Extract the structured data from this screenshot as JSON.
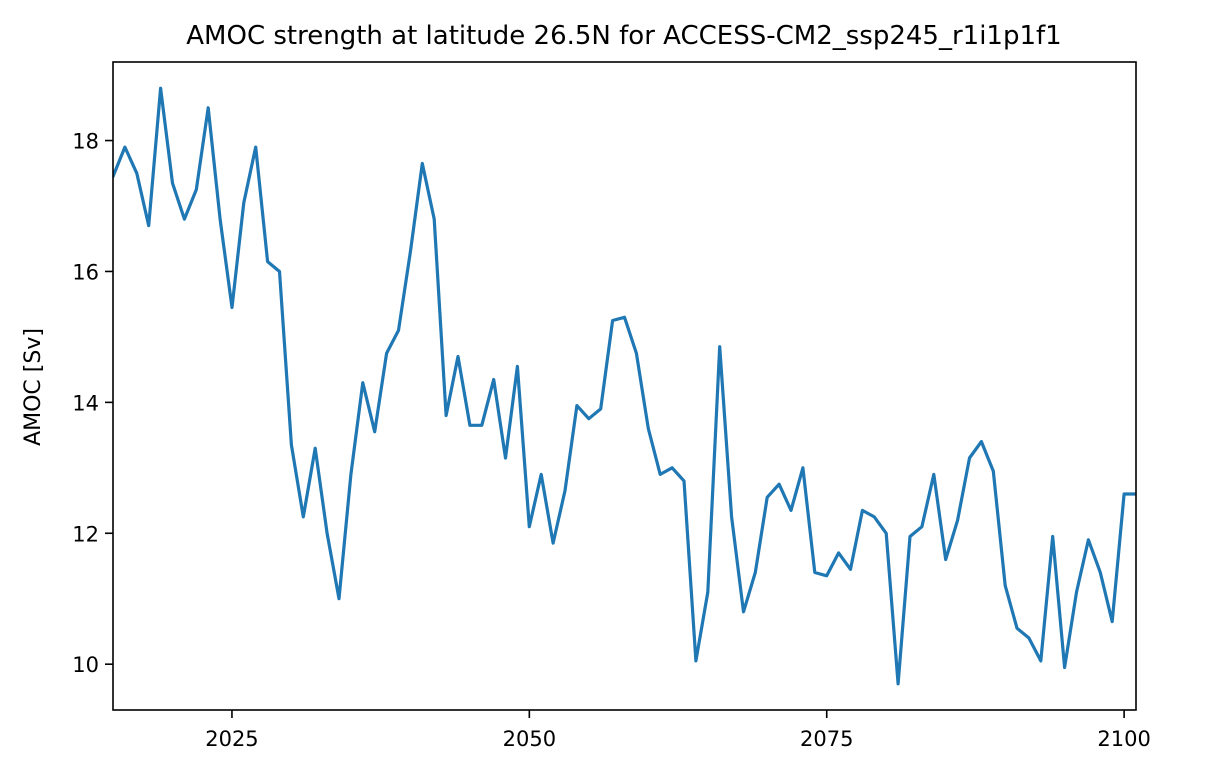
{
  "chart_data": {
    "type": "line",
    "title": "AMOC strength at latitude 26.5N for ACCESS-CM2_ssp245_r1i1p1f1",
    "xlabel": "",
    "ylabel": "AMOC [Sv]",
    "xlim": [
      2015,
      2101
    ],
    "ylim": [
      9.3,
      19.2
    ],
    "xticks": [
      2025,
      2050,
      2075,
      2100
    ],
    "yticks": [
      10,
      12,
      14,
      16,
      18
    ],
    "grid": false,
    "color": "#1f77b4",
    "series": [
      {
        "x": [
          2015,
          2016,
          2017,
          2018,
          2019,
          2020,
          2021,
          2022,
          2023,
          2024,
          2025,
          2026,
          2027,
          2028,
          2029,
          2030,
          2031,
          2032,
          2033,
          2034,
          2035,
          2036,
          2037,
          2038,
          2039,
          2040,
          2041,
          2042,
          2043,
          2044,
          2045,
          2046,
          2047,
          2048,
          2049,
          2050,
          2051,
          2052,
          2053,
          2054,
          2055,
          2056,
          2057,
          2058,
          2059,
          2060,
          2061,
          2062,
          2063,
          2064,
          2065,
          2066,
          2067,
          2068,
          2069,
          2070,
          2071,
          2072,
          2073,
          2074,
          2075,
          2076,
          2077,
          2078,
          2079,
          2080,
          2081,
          2082,
          2083,
          2084,
          2085,
          2086,
          2087,
          2088,
          2089,
          2090,
          2091,
          2092,
          2093,
          2094,
          2095,
          2096,
          2097,
          2098,
          2099,
          2100,
          2101
        ],
        "y": [
          17.45,
          17.9,
          17.5,
          16.7,
          18.8,
          17.35,
          16.8,
          17.25,
          18.5,
          16.8,
          15.45,
          17.05,
          17.9,
          16.15,
          16.0,
          13.35,
          12.25,
          13.3,
          12.0,
          11.0,
          12.9,
          14.3,
          13.55,
          14.75,
          15.1,
          16.3,
          17.65,
          16.8,
          13.8,
          14.7,
          13.65,
          13.65,
          14.35,
          13.15,
          14.55,
          12.1,
          12.9,
          11.85,
          12.65,
          13.95,
          13.75,
          13.9,
          15.25,
          15.3,
          14.75,
          13.6,
          12.9,
          13.0,
          12.8,
          10.05,
          11.1,
          14.85,
          12.25,
          10.8,
          11.4,
          12.55,
          12.75,
          12.35,
          13.0,
          11.4,
          11.35,
          11.7,
          11.45,
          12.35,
          12.25,
          12.0,
          9.7,
          11.95,
          12.1,
          12.9,
          11.6,
          12.2,
          13.15,
          13.4,
          12.95,
          11.2,
          10.55,
          10.4,
          10.05,
          11.95,
          9.95,
          11.1,
          11.9,
          11.4,
          10.65,
          12.6,
          12.6
        ]
      }
    ]
  }
}
